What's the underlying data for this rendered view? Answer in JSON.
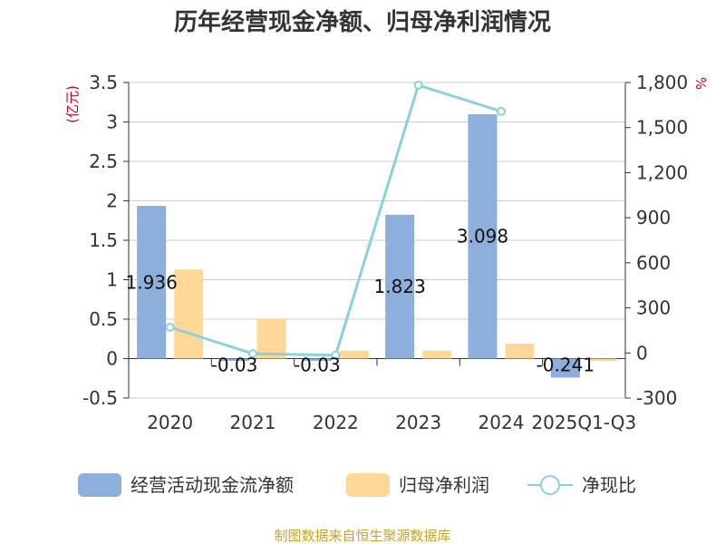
{
  "chart_data": {
    "type": "bar",
    "title": "历年经营现金净额、归母净利润情况",
    "categories": [
      "2020",
      "2021",
      "2022",
      "2023",
      "2024",
      "2025Q1-Q3"
    ],
    "series": [
      {
        "name": "经营活动现金流净额",
        "type": "bar",
        "axis": "left",
        "values": [
          1.936,
          -0.03,
          -0.03,
          1.823,
          3.098,
          -0.241
        ],
        "color": "#8eaedb"
      },
      {
        "name": "归母净利润",
        "type": "bar",
        "axis": "left",
        "values": [
          1.13,
          0.51,
          0.1,
          0.1,
          0.19,
          -0.03
        ],
        "color": "#ffd898"
      },
      {
        "name": "净现比",
        "type": "line",
        "axis": "right",
        "values": [
          171,
          -5,
          -15,
          1782,
          1608,
          null
        ],
        "color": "#8ad1d9"
      }
    ],
    "data_labels": [
      "1.936",
      "-0.03",
      "-0.03",
      "1.823",
      "3.098",
      "-0.241"
    ],
    "y_left": {
      "unit": "(亿元)",
      "lim": [
        -0.5,
        3.5
      ],
      "ticks": [
        "-0.5",
        "0",
        "0.5",
        "1",
        "1.5",
        "2",
        "2.5",
        "3",
        "3.5"
      ]
    },
    "y_right": {
      "unit": "%",
      "lim": [
        -300,
        1800
      ],
      "ticks": [
        "-300",
        "0",
        "300",
        "600",
        "900",
        "1,200",
        "1,500",
        "1,800"
      ]
    },
    "grid": true,
    "legend_position": "bottom"
  },
  "source": "制图数据来自恒生聚源数据库"
}
